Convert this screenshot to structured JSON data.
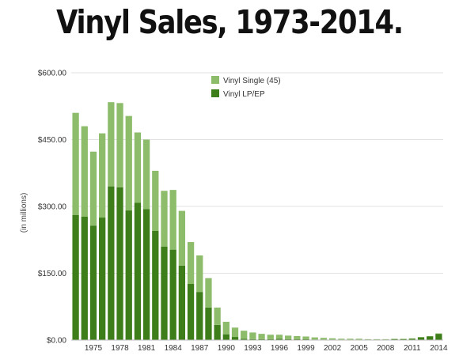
{
  "chart_data": {
    "type": "bar",
    "stacked": true,
    "title": "Vinyl Sales, 1973-2014.",
    "ylabel": "(in millions)",
    "ylim": [
      0,
      600
    ],
    "yticks": [
      "$0.00",
      "$150.00",
      "$300.00",
      "$450.00",
      "$600.00"
    ],
    "ytick_values": [
      0,
      150,
      300,
      450,
      600
    ],
    "xtick_labels": [
      "1975",
      "1978",
      "1981",
      "1984",
      "1987",
      "1990",
      "1993",
      "1996",
      "1999",
      "2002",
      "2005",
      "2008",
      "2011",
      "2014"
    ],
    "categories": [
      "1973",
      "1974",
      "1975",
      "1976",
      "1977",
      "1978",
      "1979",
      "1980",
      "1981",
      "1982",
      "1983",
      "1984",
      "1985",
      "1986",
      "1987",
      "1988",
      "1989",
      "1990",
      "1991",
      "1992",
      "1993",
      "1994",
      "1995",
      "1996",
      "1997",
      "1998",
      "1999",
      "2000",
      "2001",
      "2002",
      "2003",
      "2004",
      "2005",
      "2006",
      "2007",
      "2008",
      "2009",
      "2010",
      "2011",
      "2012",
      "2013",
      "2014"
    ],
    "grid": true,
    "legend_position": "top-center",
    "series": [
      {
        "name": "Vinyl LP/EP",
        "color": "#3d7d1a",
        "values": [
          281,
          277,
          257,
          275,
          345,
          343,
          291,
          308,
          294,
          245,
          210,
          203,
          167,
          126,
          108,
          73,
          34,
          13,
          7,
          3,
          2,
          2,
          2,
          3,
          2,
          2,
          2,
          1,
          1,
          1,
          1,
          1,
          1,
          1,
          1,
          1,
          2,
          2,
          3,
          6,
          8,
          14
        ]
      },
      {
        "name": "Vinyl Single (45)",
        "color": "#8dbc6b",
        "values": [
          229,
          203,
          166,
          189,
          189,
          189,
          212,
          158,
          156,
          135,
          125,
          134,
          123,
          94,
          82,
          66,
          39,
          28,
          21,
          18,
          15,
          12,
          10,
          9,
          8,
          7,
          6,
          5,
          4,
          3,
          2,
          2,
          2,
          1,
          1,
          1,
          1,
          1,
          1,
          1,
          1,
          1
        ]
      }
    ]
  }
}
